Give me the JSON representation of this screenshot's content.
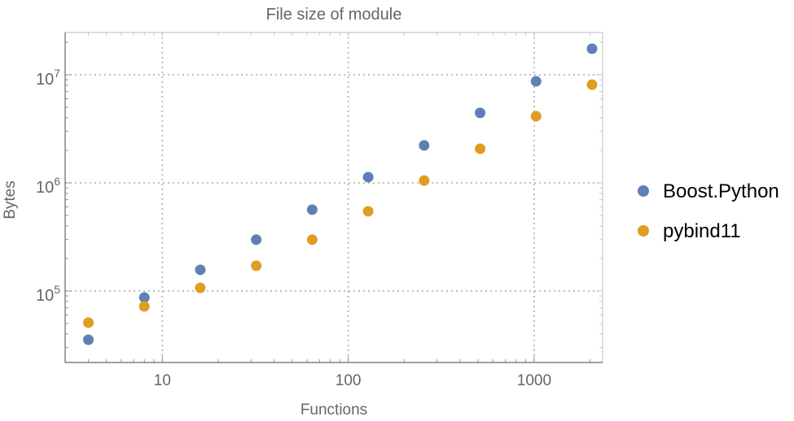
{
  "chart_data": {
    "type": "scatter",
    "title": "File size of module",
    "xlabel": "Functions",
    "ylabel": "Bytes",
    "xscale": "log",
    "yscale": "log",
    "xlim": [
      3.0,
      2335
    ],
    "ylim": [
      21800,
      24600000
    ],
    "grid": true,
    "legend_position": "right",
    "x_ticks": [
      {
        "value": 10,
        "label": "10"
      },
      {
        "value": 100,
        "label": "100"
      },
      {
        "value": 1000,
        "label": "1000"
      }
    ],
    "y_ticks": [
      {
        "value": 100000,
        "base": "10",
        "exp": "5"
      },
      {
        "value": 1000000,
        "base": "10",
        "exp": "6"
      },
      {
        "value": 10000000,
        "base": "10",
        "exp": "7"
      }
    ],
    "x": [
      4,
      8,
      16,
      32,
      64,
      128,
      256,
      512,
      1024,
      2048
    ],
    "series": [
      {
        "name": "Boost.Python",
        "color": "#5E81B5",
        "values": [
          35400,
          87000,
          157000,
          298000,
          565000,
          1130000,
          2220000,
          4440000,
          8700000,
          17400000
        ]
      },
      {
        "name": "pybind11",
        "color": "#E19C24",
        "values": [
          50900,
          72000,
          107000,
          171000,
          298000,
          546000,
          1050000,
          2070000,
          4140000,
          8100000
        ]
      }
    ]
  }
}
